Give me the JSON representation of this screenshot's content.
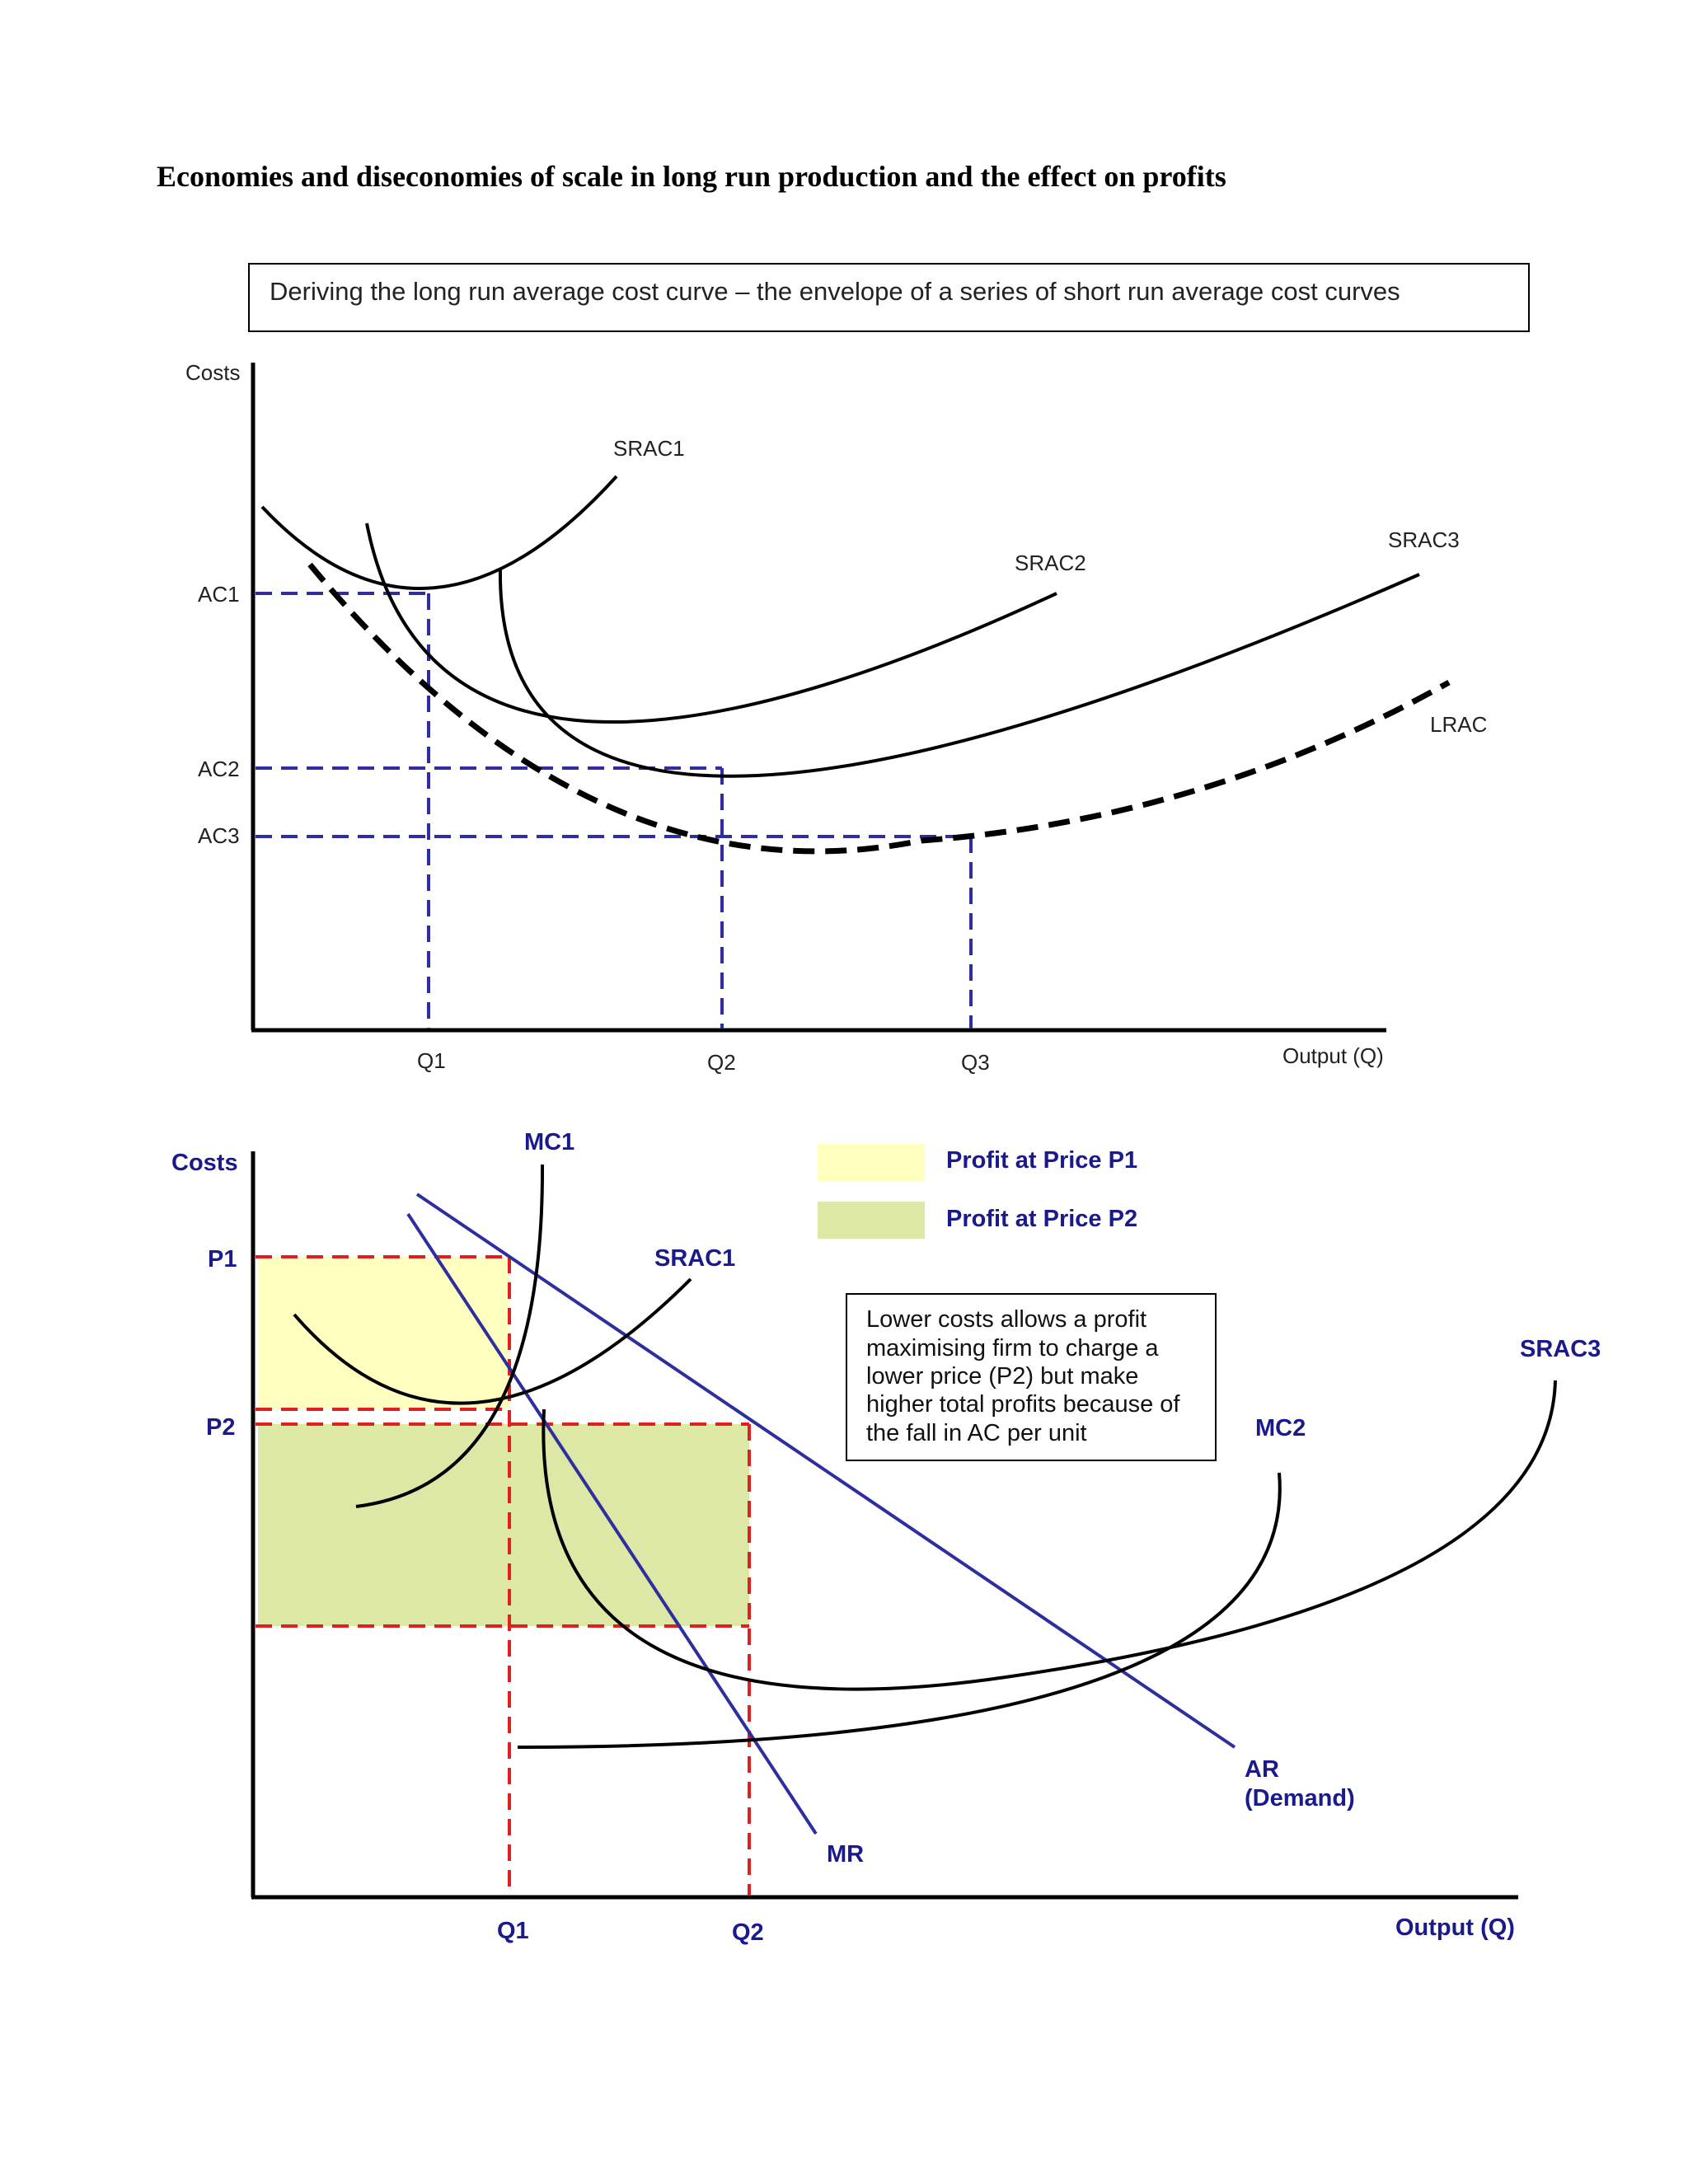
{
  "page": {
    "title": "Economies and diseconomies of scale in long run production and the effect on profits"
  },
  "diagram1": {
    "caption": "Deriving the long run average cost curve – the envelope of a series of short run average cost curves",
    "y_axis_label": "Costs",
    "x_axis_label": "Output (Q)",
    "y_ticks": [
      "AC1",
      "AC2",
      "AC3"
    ],
    "x_ticks": [
      "Q1",
      "Q2",
      "Q3"
    ],
    "curves": [
      "SRAC1",
      "SRAC2",
      "SRAC3",
      "LRAC"
    ]
  },
  "diagram2": {
    "y_axis_label": "Costs",
    "x_axis_label": "Output (Q)",
    "y_ticks": [
      "P1",
      "P2"
    ],
    "x_ticks": [
      "Q1",
      "Q2"
    ],
    "curves": {
      "mc1": "MC1",
      "srac1": "SRAC1",
      "mc2": "MC2",
      "srac3": "SRAC3",
      "mr": "MR",
      "ar_line1": "AR",
      "ar_line2": "(Demand)"
    },
    "legend": [
      {
        "label": "Profit at Price P1",
        "color": "#ffffc0"
      },
      {
        "label": "Profit at Price P2",
        "color": "#dde8a6"
      }
    ],
    "note_lines": [
      "Lower costs allows a profit",
      "maximising firm to charge a",
      "lower price (P2) but make",
      "higher total profits because of",
      "the fall in AC per unit"
    ],
    "colors": {
      "dashed_guides_top": "#2e2e9e",
      "dashed_guides_bottom": "#e02020",
      "demand_lines": "#2e2e9e",
      "cost_curves": "#000000"
    }
  }
}
